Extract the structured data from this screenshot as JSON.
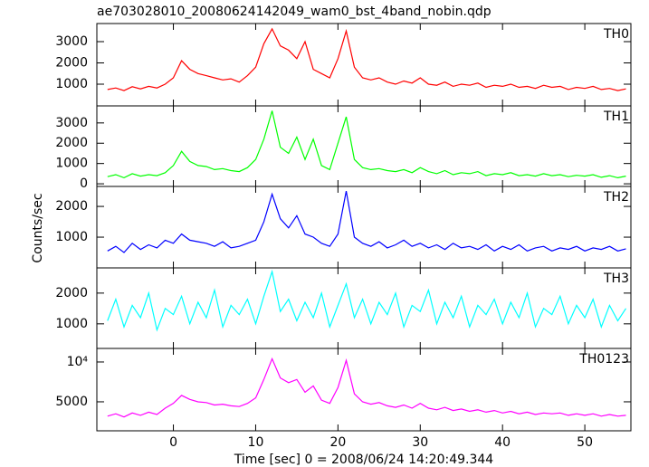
{
  "chart_data": [
    {
      "type": "line",
      "title": "ae703028010_20080624142049_wam0_bst_4band_nobin.qdp",
      "xlim": [
        -9.3,
        55.6
      ],
      "xticks": [
        0,
        10,
        20,
        30,
        40,
        50
      ],
      "ylim": [
        -20,
        3850
      ],
      "yticks": [
        1000,
        2000,
        3000
      ],
      "x": [
        -8,
        -7,
        -6,
        -5,
        -4,
        -3,
        -2,
        -1,
        0,
        1,
        2,
        3,
        4,
        5,
        6,
        7,
        8,
        9,
        10,
        11,
        12,
        13,
        14,
        15,
        16,
        17,
        18,
        19,
        20,
        21,
        22,
        23,
        24,
        25,
        26,
        27,
        28,
        29,
        30,
        31,
        32,
        33,
        34,
        35,
        36,
        37,
        38,
        39,
        40,
        41,
        42,
        43,
        44,
        45,
        46,
        47,
        48,
        49,
        50,
        51,
        52,
        53,
        54,
        55
      ],
      "series": [
        {
          "name": "TH0",
          "color": "#ff0000",
          "values": [
            750,
            820,
            700,
            880,
            780,
            900,
            820,
            1000,
            1300,
            2100,
            1700,
            1500,
            1400,
            1300,
            1200,
            1250,
            1100,
            1400,
            1800,
            2900,
            3600,
            2800,
            2600,
            2200,
            3000,
            1700,
            1500,
            1300,
            2200,
            3500,
            1800,
            1300,
            1200,
            1300,
            1100,
            1000,
            1150,
            1050,
            1300,
            1000,
            950,
            1100,
            900,
            1000,
            950,
            1050,
            850,
            950,
            900,
            1000,
            850,
            900,
            800,
            950,
            850,
            900,
            750,
            850,
            800,
            900,
            750,
            800,
            700,
            780
          ]
        }
      ]
    },
    {
      "type": "line",
      "xlim": [
        -9.3,
        55.6
      ],
      "xticks": [
        0,
        10,
        20,
        30,
        40,
        50
      ],
      "ylim": [
        -130,
        3840
      ],
      "yticks": [
        0,
        1000,
        2000,
        3000
      ],
      "x": [
        -8,
        -7,
        -6,
        -5,
        -4,
        -3,
        -2,
        -1,
        0,
        1,
        2,
        3,
        4,
        5,
        6,
        7,
        8,
        9,
        10,
        11,
        12,
        13,
        14,
        15,
        16,
        17,
        18,
        19,
        20,
        21,
        22,
        23,
        24,
        25,
        26,
        27,
        28,
        29,
        30,
        31,
        32,
        33,
        34,
        35,
        36,
        37,
        38,
        39,
        40,
        41,
        42,
        43,
        44,
        45,
        46,
        47,
        48,
        49,
        50,
        51,
        52,
        53,
        54,
        55
      ],
      "series": [
        {
          "name": "TH1",
          "color": "#00ff00",
          "values": [
            350,
            450,
            300,
            500,
            380,
            450,
            400,
            550,
            900,
            1600,
            1100,
            900,
            850,
            700,
            750,
            650,
            600,
            800,
            1200,
            2200,
            3600,
            1800,
            1500,
            2300,
            1200,
            2200,
            900,
            700,
            2000,
            3300,
            1200,
            800,
            700,
            750,
            650,
            600,
            700,
            550,
            800,
            600,
            500,
            650,
            450,
            550,
            500,
            600,
            400,
            500,
            450,
            550,
            400,
            450,
            380,
            500,
            400,
            450,
            350,
            420,
            380,
            450,
            320,
            400,
            300,
            380
          ]
        }
      ]
    },
    {
      "type": "line",
      "ylabel": "Counts/sec",
      "xlim": [
        -9.3,
        55.6
      ],
      "xticks": [
        0,
        10,
        20,
        30,
        40,
        50
      ],
      "ylim": [
        0,
        2650
      ],
      "yticks": [
        1000,
        2000
      ],
      "x": [
        -8,
        -7,
        -6,
        -5,
        -4,
        -3,
        -2,
        -1,
        0,
        1,
        2,
        3,
        4,
        5,
        6,
        7,
        8,
        9,
        10,
        11,
        12,
        13,
        14,
        15,
        16,
        17,
        18,
        19,
        20,
        21,
        22,
        23,
        24,
        25,
        26,
        27,
        28,
        29,
        30,
        31,
        32,
        33,
        34,
        35,
        36,
        37,
        38,
        39,
        40,
        41,
        42,
        43,
        44,
        45,
        46,
        47,
        48,
        49,
        50,
        51,
        52,
        53,
        54,
        55
      ],
      "series": [
        {
          "name": "TH2",
          "color": "#0000ff",
          "values": [
            550,
            700,
            500,
            800,
            600,
            750,
            650,
            900,
            800,
            1100,
            900,
            850,
            800,
            700,
            850,
            650,
            700,
            800,
            900,
            1500,
            2400,
            1600,
            1300,
            1700,
            1100,
            1000,
            800,
            700,
            1100,
            2500,
            1000,
            800,
            700,
            850,
            650,
            750,
            900,
            700,
            800,
            650,
            750,
            600,
            800,
            650,
            700,
            600,
            750,
            550,
            700,
            600,
            750,
            550,
            650,
            700,
            550,
            650,
            600,
            700,
            550,
            650,
            600,
            700,
            550,
            620
          ]
        }
      ]
    },
    {
      "type": "line",
      "xlim": [
        -9.3,
        55.6
      ],
      "xticks": [
        0,
        10,
        20,
        30,
        40,
        50
      ],
      "ylim": [
        200,
        2820
      ],
      "yticks": [
        1000,
        2000
      ],
      "x": [
        -8,
        -7,
        -6,
        -5,
        -4,
        -3,
        -2,
        -1,
        0,
        1,
        2,
        3,
        4,
        5,
        6,
        7,
        8,
        9,
        10,
        11,
        12,
        13,
        14,
        15,
        16,
        17,
        18,
        19,
        20,
        21,
        22,
        23,
        24,
        25,
        26,
        27,
        28,
        29,
        30,
        31,
        32,
        33,
        34,
        35,
        36,
        37,
        38,
        39,
        40,
        41,
        42,
        43,
        44,
        45,
        46,
        47,
        48,
        49,
        50,
        51,
        52,
        53,
        54,
        55
      ],
      "series": [
        {
          "name": "TH3",
          "color": "#00ffff",
          "values": [
            1100,
            1800,
            900,
            1600,
            1200,
            2000,
            800,
            1500,
            1300,
            1900,
            1000,
            1700,
            1200,
            2100,
            900,
            1600,
            1300,
            1800,
            1000,
            1900,
            2700,
            1400,
            1800,
            1100,
            1700,
            1200,
            2000,
            900,
            1600,
            2300,
            1200,
            1800,
            1000,
            1700,
            1300,
            2000,
            900,
            1600,
            1400,
            2100,
            1000,
            1700,
            1200,
            1900,
            900,
            1600,
            1300,
            1800,
            1000,
            1700,
            1200,
            2000,
            900,
            1500,
            1300,
            1900,
            1000,
            1600,
            1200,
            1800,
            900,
            1600,
            1100,
            1500
          ]
        }
      ]
    },
    {
      "type": "line",
      "xlabel": "Time [sec] 0 = 2008/06/24 14:20:49.344",
      "xlim": [
        -9.3,
        55.6
      ],
      "xticks": [
        0,
        10,
        20,
        30,
        40,
        50
      ],
      "ylim": [
        1360,
        11700
      ],
      "yticks": [
        5000,
        {
          "value": 10000,
          "label": "10⁴"
        }
      ],
      "x": [
        -8,
        -7,
        -6,
        -5,
        -4,
        -3,
        -2,
        -1,
        0,
        1,
        2,
        3,
        4,
        5,
        6,
        7,
        8,
        9,
        10,
        11,
        12,
        13,
        14,
        15,
        16,
        17,
        18,
        19,
        20,
        21,
        22,
        23,
        24,
        25,
        26,
        27,
        28,
        29,
        30,
        31,
        32,
        33,
        34,
        35,
        36,
        37,
        38,
        39,
        40,
        41,
        42,
        43,
        44,
        45,
        46,
        47,
        48,
        49,
        50,
        51,
        52,
        53,
        54,
        55
      ],
      "series": [
        {
          "name": "TH0123",
          "color": "#ff00ff",
          "values": [
            3200,
            3500,
            3100,
            3600,
            3300,
            3700,
            3400,
            4200,
            4800,
            5800,
            5300,
            5000,
            4900,
            4600,
            4700,
            4500,
            4400,
            4800,
            5500,
            7800,
            10400,
            8000,
            7400,
            7800,
            6200,
            7000,
            5200,
            4800,
            6800,
            10200,
            6000,
            5000,
            4700,
            4900,
            4500,
            4300,
            4600,
            4200,
            4800,
            4200,
            4000,
            4300,
            3900,
            4100,
            3800,
            4000,
            3700,
            3900,
            3600,
            3800,
            3500,
            3700,
            3400,
            3600,
            3500,
            3600,
            3300,
            3500,
            3300,
            3500,
            3200,
            3400,
            3200,
            3300
          ]
        }
      ]
    }
  ]
}
